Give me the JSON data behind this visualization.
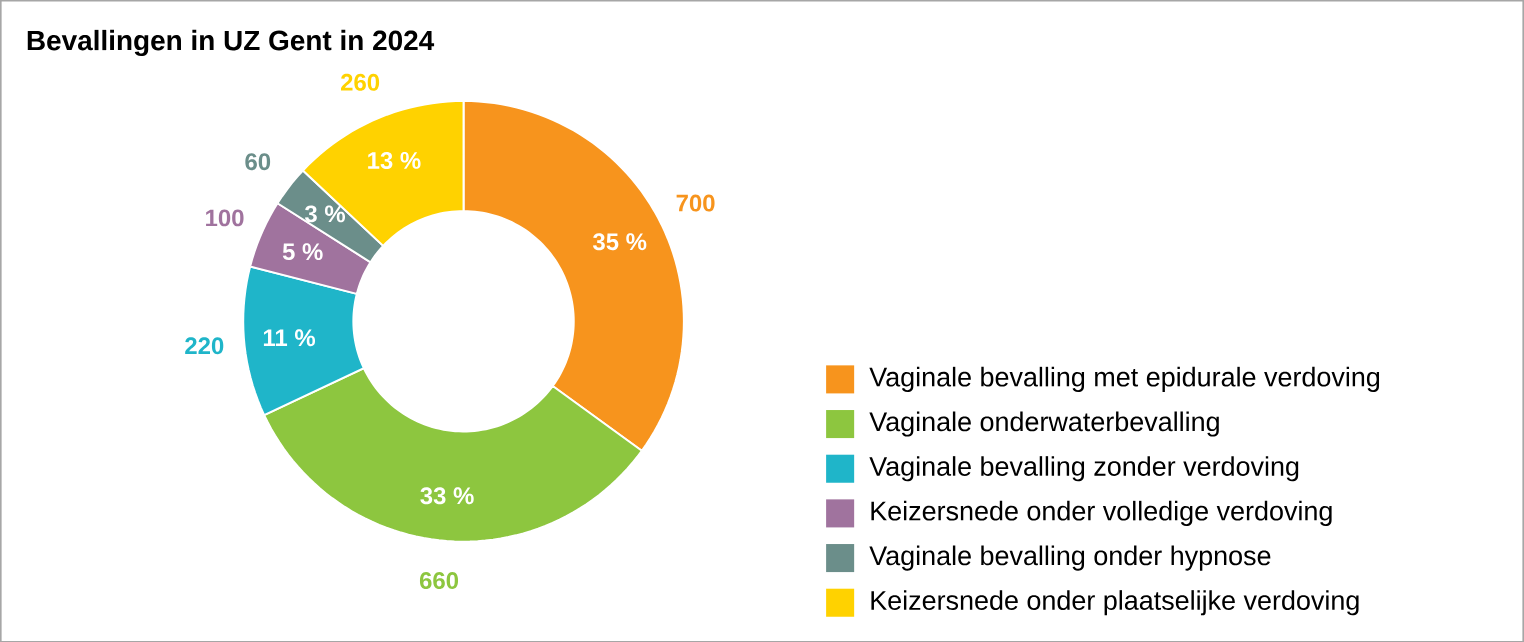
{
  "chart_data": {
    "type": "donut",
    "title": "Bevallingen in UZ Gent in 2024",
    "categories": [
      "Vaginale bevalling met epidurale verdoving",
      "Vaginale onderwaterbevalling",
      "Vaginale bevalling zonder verdoving",
      "Keizersnede onder volledige verdoving",
      "Vaginale bevalling onder hypnose",
      "Keizersnede onder plaatselijke verdoving"
    ],
    "values": [
      700,
      660,
      220,
      100,
      60,
      260
    ],
    "value_labels": [
      "700",
      "660",
      "220",
      "100",
      "60",
      "260"
    ],
    "annotations": [
      {
        "text": "35 %",
        "x": "Vaginale bevalling met epidurale verdoving"
      },
      {
        "text": "33 %",
        "x": "Vaginale onderwaterbevalling"
      },
      {
        "text": "11 %",
        "x": "Vaginale bevalling zonder verdoving"
      },
      {
        "text": "5 %",
        "x": "Keizersnede onder volledige verdoving"
      },
      {
        "text": "3 %",
        "x": "Vaginale bevalling onder hypnose"
      },
      {
        "text": "13 %",
        "x": "Keizersnede onder plaatselijke verdoving"
      }
    ],
    "colors": [
      "#f7941d",
      "#8dc63f",
      "#1fb5c9",
      "#a0739e",
      "#6b8e8a",
      "#ffd200"
    ],
    "legend": "right"
  }
}
